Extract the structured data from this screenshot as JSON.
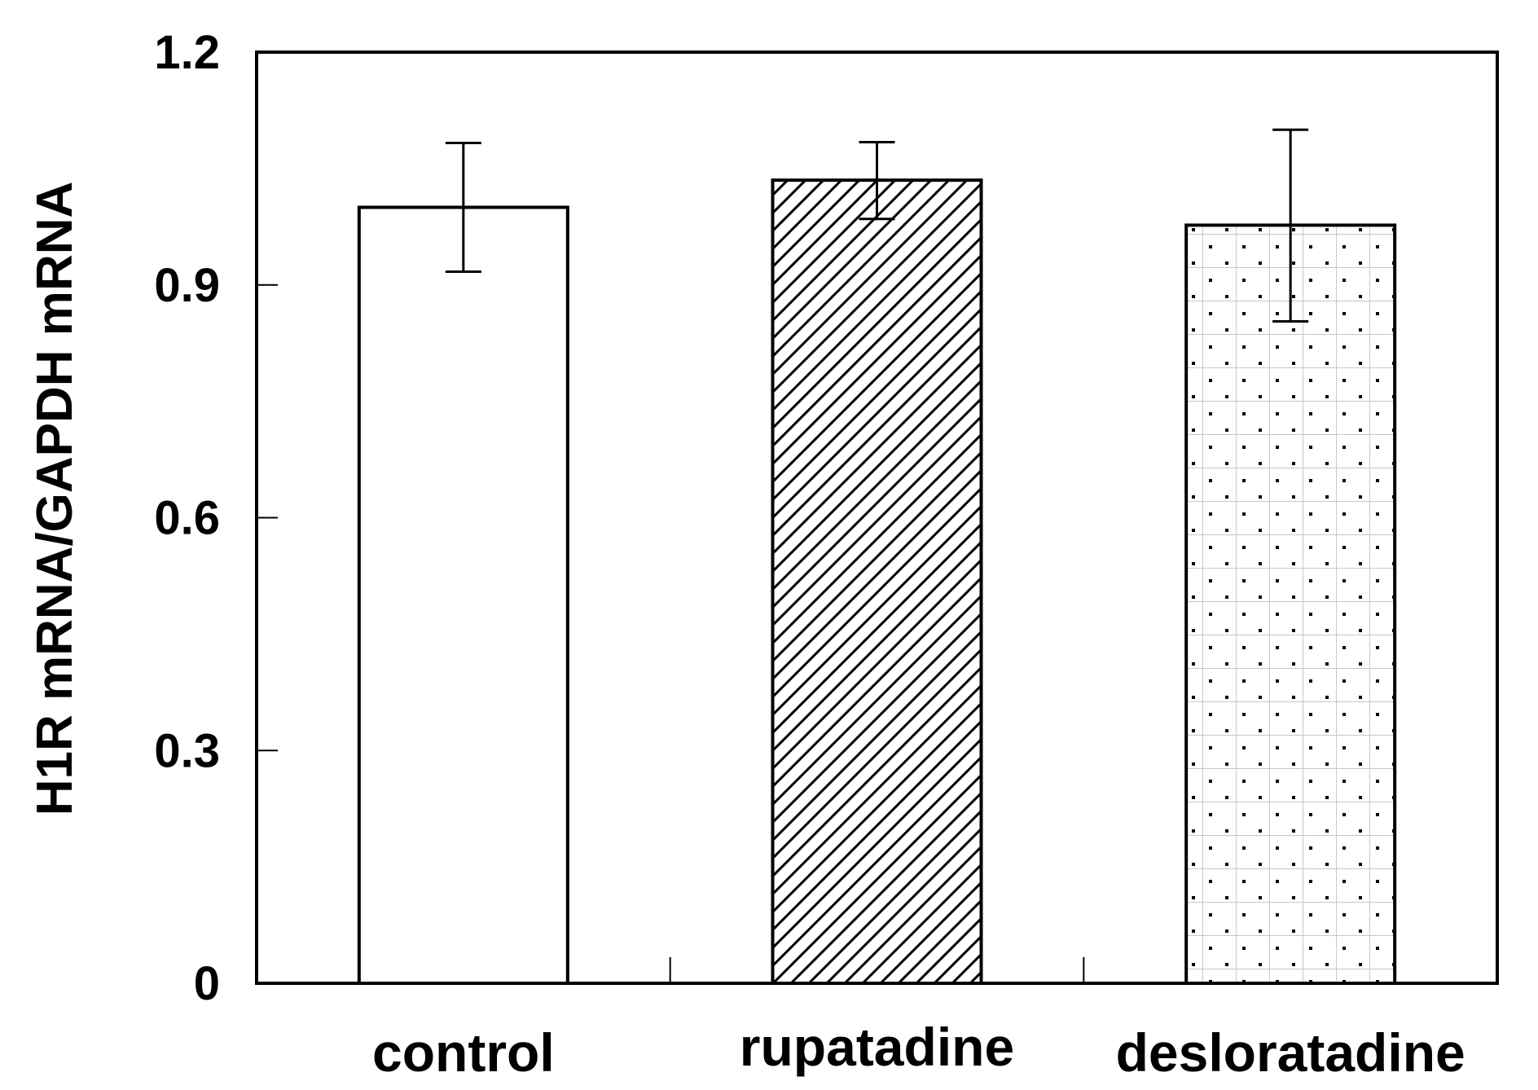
{
  "chart_data": {
    "type": "bar",
    "title": "",
    "xlabel": "",
    "ylabel": "H1R mRNA/GAPDH mRNA",
    "ylim": [
      0,
      1.2
    ],
    "yticks": [
      0,
      0.3,
      0.6,
      0.9,
      1.2
    ],
    "ytick_labels": [
      "0",
      "0.3",
      "0.6",
      "0.9",
      "1.2"
    ],
    "categories": [
      "control",
      "rupatadine",
      "desloratadine"
    ],
    "values": [
      1.0,
      1.035,
      0.977
    ],
    "error_low": [
      0.917,
      0.985,
      0.853
    ],
    "error_high": [
      1.083,
      1.084,
      1.1
    ],
    "fills": [
      "empty",
      "diagonal-hatch",
      "dots"
    ],
    "colors": {
      "stroke": "#000000",
      "background": "#ffffff"
    },
    "grid": false,
    "legend": "none"
  }
}
